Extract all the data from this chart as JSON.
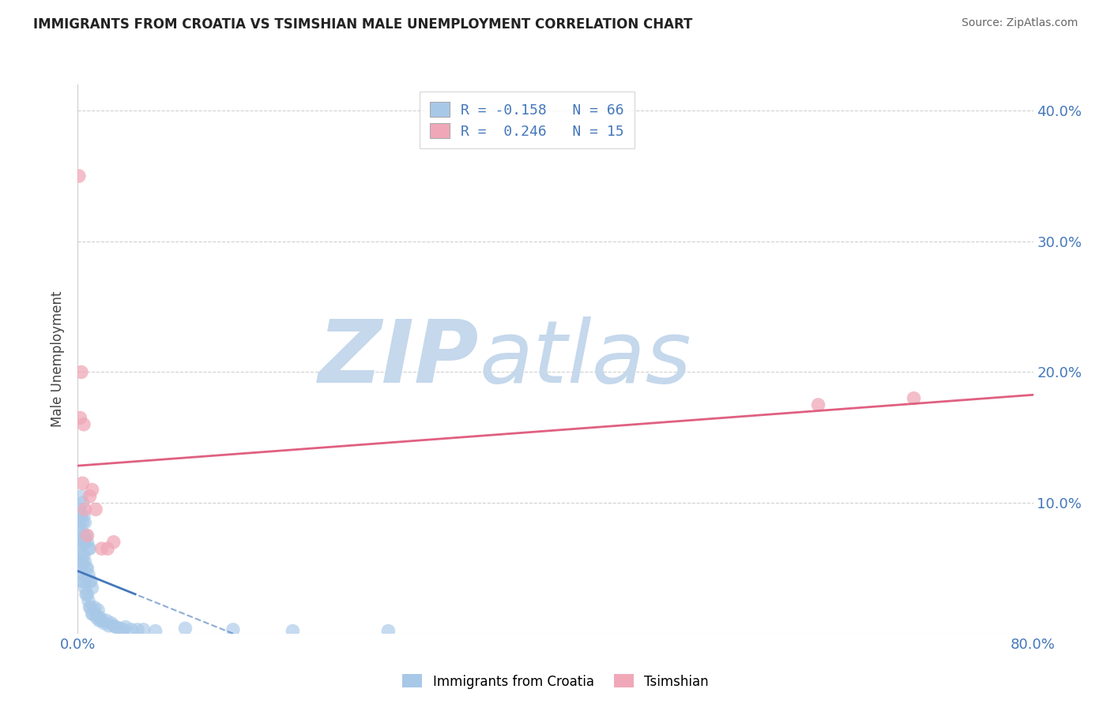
{
  "title": "IMMIGRANTS FROM CROATIA VS TSIMSHIAN MALE UNEMPLOYMENT CORRELATION CHART",
  "source_text": "Source: ZipAtlas.com",
  "ylabel": "Male Unemployment",
  "xlim": [
    0.0,
    0.8
  ],
  "ylim": [
    0.0,
    0.42
  ],
  "xticks": [
    0.0,
    0.2,
    0.4,
    0.6,
    0.8
  ],
  "yticks": [
    0.0,
    0.1,
    0.2,
    0.3,
    0.4
  ],
  "xticklabels": [
    "0.0%",
    "",
    "",
    "",
    "80.0%"
  ],
  "yticklabels_right": [
    "",
    "10.0%",
    "20.0%",
    "30.0%",
    "40.0%"
  ],
  "blue_color": "#a8c8e8",
  "pink_color": "#f0a8b8",
  "trend_blue_color": "#4477bb",
  "trend_pink_color": "#e06080",
  "legend_line1": "R = -0.158   N = 66",
  "legend_line2": "R =  0.246   N = 15",
  "watermark_zip": "ZIP",
  "watermark_atlas": "atlas",
  "watermark_color": "#c5d8ec",
  "blue_scatter_x": [
    0.001,
    0.001,
    0.001,
    0.002,
    0.002,
    0.002,
    0.002,
    0.003,
    0.003,
    0.003,
    0.003,
    0.003,
    0.004,
    0.004,
    0.004,
    0.004,
    0.004,
    0.005,
    0.005,
    0.005,
    0.005,
    0.006,
    0.006,
    0.006,
    0.006,
    0.007,
    0.007,
    0.007,
    0.008,
    0.008,
    0.008,
    0.009,
    0.009,
    0.009,
    0.01,
    0.01,
    0.01,
    0.011,
    0.011,
    0.012,
    0.012,
    0.013,
    0.014,
    0.015,
    0.016,
    0.017,
    0.018,
    0.019,
    0.02,
    0.022,
    0.024,
    0.026,
    0.028,
    0.03,
    0.032,
    0.035,
    0.038,
    0.04,
    0.045,
    0.05,
    0.055,
    0.065,
    0.09,
    0.13,
    0.18,
    0.26
  ],
  "blue_scatter_y": [
    0.055,
    0.07,
    0.085,
    0.05,
    0.065,
    0.08,
    0.095,
    0.045,
    0.06,
    0.075,
    0.09,
    0.105,
    0.04,
    0.055,
    0.07,
    0.085,
    0.1,
    0.04,
    0.06,
    0.075,
    0.09,
    0.035,
    0.055,
    0.07,
    0.085,
    0.03,
    0.05,
    0.075,
    0.03,
    0.05,
    0.07,
    0.025,
    0.045,
    0.065,
    0.02,
    0.04,
    0.065,
    0.02,
    0.04,
    0.015,
    0.035,
    0.015,
    0.02,
    0.015,
    0.012,
    0.018,
    0.01,
    0.012,
    0.01,
    0.008,
    0.01,
    0.006,
    0.008,
    0.006,
    0.005,
    0.004,
    0.003,
    0.005,
    0.003,
    0.003,
    0.003,
    0.002,
    0.004,
    0.003,
    0.002,
    0.002
  ],
  "pink_scatter_x": [
    0.001,
    0.002,
    0.003,
    0.004,
    0.005,
    0.006,
    0.008,
    0.01,
    0.012,
    0.015,
    0.02,
    0.025,
    0.03,
    0.62,
    0.7
  ],
  "pink_scatter_y": [
    0.35,
    0.165,
    0.2,
    0.115,
    0.16,
    0.095,
    0.075,
    0.105,
    0.11,
    0.095,
    0.065,
    0.065,
    0.07,
    0.175,
    0.18
  ],
  "background_color": "#ffffff",
  "grid_color": "#d0d0d0"
}
